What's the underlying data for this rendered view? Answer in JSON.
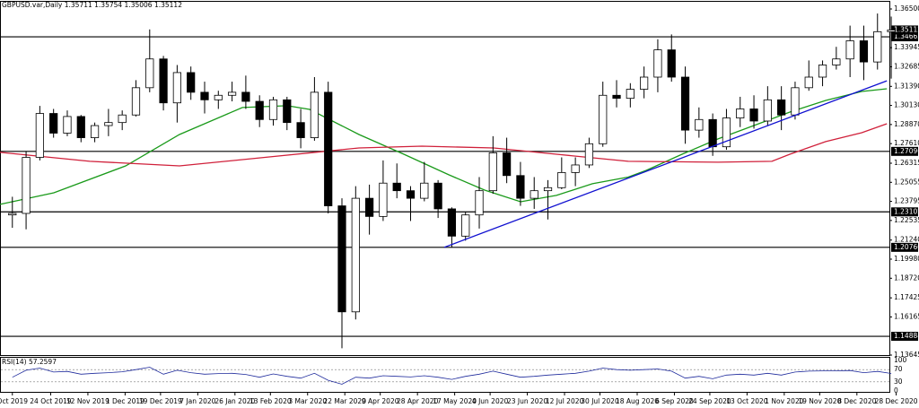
{
  "chart_data": {
    "type": "candlestick",
    "title": "GBPUSD.var,Daily  1.35711 1.35754 1.35006 1.35112",
    "xlim": [
      -0.4,
      64.3
    ],
    "xticks": [
      {
        "value": 0.5,
        "label": "Oct 2019"
      },
      {
        "value": 3.29,
        "label": "24 Oct 2019"
      },
      {
        "value": 6.0,
        "label": "12 Nov 2019"
      },
      {
        "value": 8.71,
        "label": "1 Dec 2019"
      },
      {
        "value": 11.29,
        "label": "19 Dec 2019"
      },
      {
        "value": 14.0,
        "label": "7 Jan 2020"
      },
      {
        "value": 16.71,
        "label": "26 Jan 2020"
      },
      {
        "value": 19.29,
        "label": "13 Feb 2020"
      },
      {
        "value": 22.0,
        "label": "3 Mar 2020"
      },
      {
        "value": 24.71,
        "label": "22 Mar 2020"
      },
      {
        "value": 27.29,
        "label": "9 Apr 2020"
      },
      {
        "value": 30.0,
        "label": "28 Apr 2020"
      },
      {
        "value": 32.71,
        "label": "17 May 2020"
      },
      {
        "value": 35.29,
        "label": "4 Jun 2020"
      },
      {
        "value": 38.0,
        "label": "23 Jun 2020"
      },
      {
        "value": 40.71,
        "label": "12 Jul 2020"
      },
      {
        "value": 43.29,
        "label": "30 Jul 2020"
      },
      {
        "value": 46.0,
        "label": "18 Aug 2020"
      },
      {
        "value": 48.71,
        "label": "6 Sep 2020"
      },
      {
        "value": 51.29,
        "label": "24 Sep 2020"
      },
      {
        "value": 54.0,
        "label": "13 Oct 2020"
      },
      {
        "value": 56.71,
        "label": "1 Nov 2020"
      },
      {
        "value": 59.29,
        "label": "19 Nov 2020"
      },
      {
        "value": 62.0,
        "label": "8 Dec 2020"
      },
      {
        "value": 64.86,
        "label": "28 Dec 2020"
      }
    ],
    "ylim": [
      1.13645,
      1.365
    ],
    "yticks": [
      {
        "value": 1.365,
        "label": "1.36500"
      },
      {
        "value": 1.33945,
        "label": "1.33945"
      },
      {
        "value": 1.32685,
        "label": "1.32685"
      },
      {
        "value": 1.3139,
        "label": "1.31390"
      },
      {
        "value": 1.3013,
        "label": "1.30130"
      },
      {
        "value": 1.2887,
        "label": "1.28870"
      },
      {
        "value": 1.2761,
        "label": "1.27610"
      },
      {
        "value": 1.26315,
        "label": "1.26315"
      },
      {
        "value": 1.25055,
        "label": "1.25055"
      },
      {
        "value": 1.23795,
        "label": "1.23795"
      },
      {
        "value": 1.22535,
        "label": "1.22535"
      },
      {
        "value": 1.2124,
        "label": "1.21240"
      },
      {
        "value": 1.1998,
        "label": "1.19980"
      },
      {
        "value": 1.1872,
        "label": "1.18720"
      },
      {
        "value": 1.17425,
        "label": "1.17425"
      },
      {
        "value": 1.16165,
        "label": "1.16165"
      },
      {
        "value": 1.13645,
        "label": "1.13645"
      }
    ],
    "open": [
      1.229,
      1.23,
      1.267,
      1.296,
      1.283,
      1.294,
      1.28,
      1.288,
      1.29,
      1.295,
      1.313,
      1.332,
      1.303,
      1.323,
      1.31,
      1.305,
      1.308,
      1.31,
      1.304,
      1.292,
      1.305,
      1.29,
      1.28,
      1.31,
      1.235,
      1.165,
      1.24,
      1.228,
      1.25,
      1.245,
      1.24,
      1.25,
      1.233,
      1.215,
      1.229,
      1.245,
      1.27,
      1.255,
      1.24,
      1.245,
      1.247,
      1.257,
      1.262,
      1.276,
      1.308,
      1.306,
      1.312,
      1.32,
      1.338,
      1.32,
      1.285,
      1.292,
      1.274,
      1.293,
      1.299,
      1.291,
      1.305,
      1.295,
      1.313,
      1.32,
      1.328,
      1.332,
      1.344,
      1.33,
      1.35
    ],
    "high": [
      1.241,
      1.271,
      1.301,
      1.299,
      1.298,
      1.295,
      1.29,
      1.299,
      1.298,
      1.318,
      1.3515,
      1.334,
      1.328,
      1.327,
      1.317,
      1.311,
      1.317,
      1.321,
      1.308,
      1.307,
      1.307,
      1.299,
      1.32,
      1.317,
      1.24,
      1.248,
      1.249,
      1.265,
      1.263,
      1.248,
      1.264,
      1.252,
      1.234,
      1.231,
      1.254,
      1.281,
      1.28,
      1.264,
      1.254,
      1.252,
      1.267,
      1.267,
      1.28,
      1.317,
      1.318,
      1.316,
      1.327,
      1.345,
      1.3482,
      1.327,
      1.3,
      1.296,
      1.299,
      1.307,
      1.308,
      1.314,
      1.314,
      1.317,
      1.331,
      1.331,
      1.34,
      1.354,
      1.354,
      1.362,
      1.36
    ],
    "low": [
      1.2205,
      1.2195,
      1.265,
      1.28,
      1.281,
      1.277,
      1.277,
      1.281,
      1.285,
      1.294,
      1.31,
      1.298,
      1.29,
      1.305,
      1.296,
      1.299,
      1.304,
      1.299,
      1.287,
      1.288,
      1.285,
      1.273,
      1.278,
      1.23,
      1.141,
      1.16,
      1.216,
      1.225,
      1.24,
      1.225,
      1.238,
      1.227,
      1.2076,
      1.212,
      1.22,
      1.243,
      1.25,
      1.235,
      1.233,
      1.226,
      1.246,
      1.248,
      1.26,
      1.274,
      1.3,
      1.3,
      1.306,
      1.31,
      1.317,
      1.276,
      1.28,
      1.268,
      1.272,
      1.287,
      1.286,
      1.288,
      1.285,
      1.292,
      1.311,
      1.314,
      1.325,
      1.32,
      1.318,
      1.325,
      1.319
    ],
    "close": [
      1.23,
      1.267,
      1.296,
      1.283,
      1.294,
      1.28,
      1.288,
      1.29,
      1.295,
      1.313,
      1.332,
      1.303,
      1.323,
      1.31,
      1.305,
      1.308,
      1.31,
      1.304,
      1.292,
      1.305,
      1.29,
      1.28,
      1.31,
      1.235,
      1.165,
      1.24,
      1.228,
      1.25,
      1.245,
      1.24,
      1.25,
      1.233,
      1.215,
      1.229,
      1.245,
      1.27,
      1.255,
      1.24,
      1.245,
      1.247,
      1.257,
      1.262,
      1.276,
      1.308,
      1.306,
      1.312,
      1.32,
      1.338,
      1.32,
      1.285,
      1.292,
      1.274,
      1.293,
      1.299,
      1.291,
      1.305,
      1.295,
      1.313,
      1.32,
      1.328,
      1.332,
      1.344,
      1.33,
      1.35,
      1.3511
    ],
    "up_color": "#ffffff",
    "down_color": "#000000",
    "levels": [
      {
        "value": 1.34662,
        "label": "1.34662"
      },
      {
        "value": 1.27096,
        "label": "1.27096"
      },
      {
        "value": 1.23102,
        "label": "1.23102"
      },
      {
        "value": 1.2076,
        "label": "1.20760"
      },
      {
        "value": 1.14884,
        "label": "1.14884"
      }
    ],
    "current_price": {
      "value": 1.35112,
      "label": "1.35112"
    },
    "moving_averages": [
      {
        "color": "#1a9a1a",
        "x": [
          -0.4,
          3.52,
          8.75,
          12.67,
          17.25,
          20.52,
          22.15,
          25.74,
          29.01,
          32.28,
          34.89,
          37.51,
          40.12,
          42.74,
          45.35,
          46.66,
          49.27,
          51.89,
          54.5,
          57.12,
          59.73,
          62.35,
          64.18
        ],
        "values": [
          1.236,
          1.2436,
          1.2614,
          1.2821,
          1.2999,
          1.3011,
          1.2987,
          1.2821,
          1.2691,
          1.2555,
          1.2454,
          1.2377,
          1.2419,
          1.2496,
          1.254,
          1.2584,
          1.2691,
          1.2792,
          1.288,
          1.2969,
          1.3046,
          1.3105,
          1.3123
        ]
      },
      {
        "color": "#d0203a",
        "x": [
          -0.4,
          6.14,
          12.67,
          19.21,
          25.74,
          30.32,
          35.55,
          40.12,
          45.35,
          51.89,
          55.81,
          57.12,
          59.73,
          62.35,
          64.18
        ],
        "values": [
          1.2703,
          1.2644,
          1.2614,
          1.2673,
          1.2732,
          1.2744,
          1.2732,
          1.2691,
          1.2644,
          1.2638,
          1.2644,
          1.2691,
          1.2774,
          1.2833,
          1.2892
        ]
      }
    ],
    "trendline": {
      "color": "#1010d0",
      "x": [
        31.95,
        64.18
      ],
      "values": [
        1.2076,
        1.3176
      ]
    },
    "rsi": {
      "title": "RSI(14) 57.2597",
      "color": "#1e2a9c",
      "ylim": [
        0,
        100
      ],
      "yticks": [
        0,
        30,
        70,
        100
      ],
      "values": [
        45,
        68,
        75,
        62,
        64,
        55,
        58,
        60,
        63,
        70,
        78,
        55,
        68,
        60,
        55,
        57,
        58,
        54,
        45,
        56,
        48,
        42,
        58,
        35,
        22,
        45,
        42,
        50,
        48,
        46,
        50,
        45,
        38,
        48,
        55,
        65,
        55,
        45,
        48,
        52,
        55,
        58,
        65,
        75,
        70,
        68,
        70,
        72,
        65,
        42,
        48,
        40,
        52,
        55,
        52,
        58,
        52,
        62,
        65,
        66,
        66,
        67,
        60,
        64,
        57.2597
      ]
    }
  }
}
